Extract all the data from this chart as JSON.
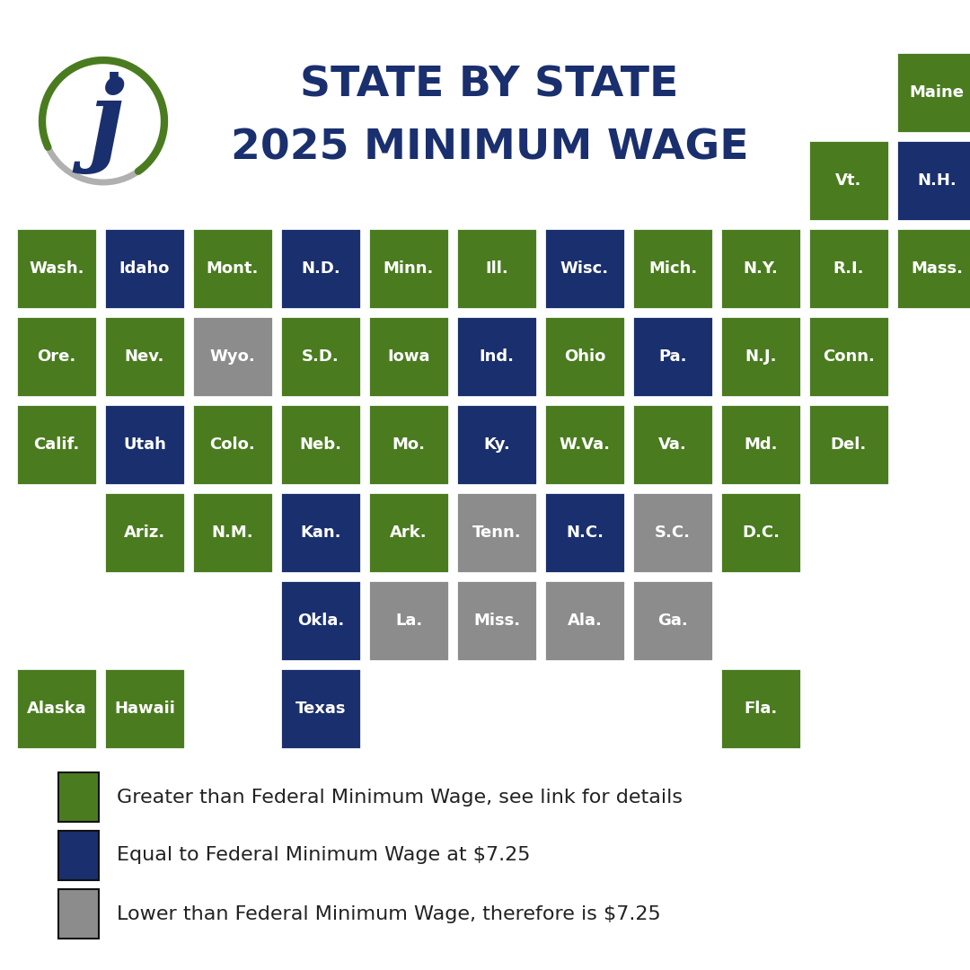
{
  "title_line1": "STATE BY STATE",
  "title_line2": "2025 MINIMUM WAGE",
  "title_color": "#1a2f6e",
  "background_color": "#ffffff",
  "green": "#4a7c1f",
  "blue": "#1a2f6e",
  "gray": "#8c8c8c",
  "text_color": "#ffffff",
  "legend_text_color": "#222222",
  "legend_items": [
    {
      "color": "#4a7c1f",
      "label": "Greater than Federal Minimum Wage, see link for details"
    },
    {
      "color": "#1a2f6e",
      "label": "Equal to Federal Minimum Wage at $7.25"
    },
    {
      "color": "#8c8c8c",
      "label": "Lower than Federal Minimum Wage, therefore is $7.25"
    }
  ],
  "states": [
    {
      "name": "Maine",
      "col": 10,
      "row": 0,
      "color": "green"
    },
    {
      "name": "Vt.",
      "col": 9,
      "row": 1,
      "color": "green"
    },
    {
      "name": "N.H.",
      "col": 10,
      "row": 1,
      "color": "blue"
    },
    {
      "name": "Wash.",
      "col": 0,
      "row": 2,
      "color": "green"
    },
    {
      "name": "Idaho",
      "col": 1,
      "row": 2,
      "color": "blue"
    },
    {
      "name": "Mont.",
      "col": 2,
      "row": 2,
      "color": "green"
    },
    {
      "name": "N.D.",
      "col": 3,
      "row": 2,
      "color": "blue"
    },
    {
      "name": "Minn.",
      "col": 4,
      "row": 2,
      "color": "green"
    },
    {
      "name": "Ill.",
      "col": 5,
      "row": 2,
      "color": "green"
    },
    {
      "name": "Wisc.",
      "col": 6,
      "row": 2,
      "color": "blue"
    },
    {
      "name": "Mich.",
      "col": 7,
      "row": 2,
      "color": "green"
    },
    {
      "name": "N.Y.",
      "col": 8,
      "row": 2,
      "color": "green"
    },
    {
      "name": "R.I.",
      "col": 9,
      "row": 2,
      "color": "green"
    },
    {
      "name": "Mass.",
      "col": 10,
      "row": 2,
      "color": "green"
    },
    {
      "name": "Ore.",
      "col": 0,
      "row": 3,
      "color": "green"
    },
    {
      "name": "Nev.",
      "col": 1,
      "row": 3,
      "color": "green"
    },
    {
      "name": "Wyo.",
      "col": 2,
      "row": 3,
      "color": "gray"
    },
    {
      "name": "S.D.",
      "col": 3,
      "row": 3,
      "color": "green"
    },
    {
      "name": "Iowa",
      "col": 4,
      "row": 3,
      "color": "green"
    },
    {
      "name": "Ind.",
      "col": 5,
      "row": 3,
      "color": "blue"
    },
    {
      "name": "Ohio",
      "col": 6,
      "row": 3,
      "color": "green"
    },
    {
      "name": "Pa.",
      "col": 7,
      "row": 3,
      "color": "blue"
    },
    {
      "name": "N.J.",
      "col": 8,
      "row": 3,
      "color": "green"
    },
    {
      "name": "Conn.",
      "col": 9,
      "row": 3,
      "color": "green"
    },
    {
      "name": "Calif.",
      "col": 0,
      "row": 4,
      "color": "green"
    },
    {
      "name": "Utah",
      "col": 1,
      "row": 4,
      "color": "blue"
    },
    {
      "name": "Colo.",
      "col": 2,
      "row": 4,
      "color": "green"
    },
    {
      "name": "Neb.",
      "col": 3,
      "row": 4,
      "color": "green"
    },
    {
      "name": "Mo.",
      "col": 4,
      "row": 4,
      "color": "green"
    },
    {
      "name": "Ky.",
      "col": 5,
      "row": 4,
      "color": "blue"
    },
    {
      "name": "W.Va.",
      "col": 6,
      "row": 4,
      "color": "green"
    },
    {
      "name": "Va.",
      "col": 7,
      "row": 4,
      "color": "green"
    },
    {
      "name": "Md.",
      "col": 8,
      "row": 4,
      "color": "green"
    },
    {
      "name": "Del.",
      "col": 9,
      "row": 4,
      "color": "green"
    },
    {
      "name": "Ariz.",
      "col": 1,
      "row": 5,
      "color": "green"
    },
    {
      "name": "N.M.",
      "col": 2,
      "row": 5,
      "color": "green"
    },
    {
      "name": "Kan.",
      "col": 3,
      "row": 5,
      "color": "blue"
    },
    {
      "name": "Ark.",
      "col": 4,
      "row": 5,
      "color": "green"
    },
    {
      "name": "Tenn.",
      "col": 5,
      "row": 5,
      "color": "gray"
    },
    {
      "name": "N.C.",
      "col": 6,
      "row": 5,
      "color": "blue"
    },
    {
      "name": "S.C.",
      "col": 7,
      "row": 5,
      "color": "gray"
    },
    {
      "name": "D.C.",
      "col": 8,
      "row": 5,
      "color": "green"
    },
    {
      "name": "Okla.",
      "col": 3,
      "row": 6,
      "color": "blue"
    },
    {
      "name": "La.",
      "col": 4,
      "row": 6,
      "color": "gray"
    },
    {
      "name": "Miss.",
      "col": 5,
      "row": 6,
      "color": "gray"
    },
    {
      "name": "Ala.",
      "col": 6,
      "row": 6,
      "color": "gray"
    },
    {
      "name": "Ga.",
      "col": 7,
      "row": 6,
      "color": "gray"
    },
    {
      "name": "Alaska",
      "col": 0,
      "row": 7,
      "color": "green"
    },
    {
      "name": "Hawaii",
      "col": 1,
      "row": 7,
      "color": "green"
    },
    {
      "name": "Texas",
      "col": 3,
      "row": 7,
      "color": "blue"
    },
    {
      "name": "Fla.",
      "col": 8,
      "row": 7,
      "color": "green"
    }
  ]
}
